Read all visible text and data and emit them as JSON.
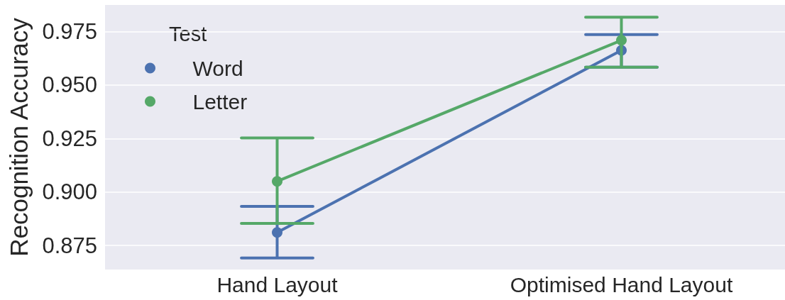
{
  "chart_data": {
    "type": "line",
    "categories": [
      "Hand Layout",
      "Optimised Hand Layout"
    ],
    "series": [
      {
        "name": "Word",
        "color": "#4c72b0",
        "values": [
          0.8811,
          0.9662
        ],
        "errors": [
          [
            0.8692,
            0.8933
          ],
          [
            0.9583,
            0.9736
          ]
        ]
      },
      {
        "name": "Letter",
        "color": "#55a868",
        "values": [
          0.905,
          0.9709
        ],
        "errors": [
          [
            0.8853,
            0.9253
          ],
          [
            0.9583,
            0.9817
          ]
        ]
      }
    ],
    "ylabel": "Recognition Accuracy",
    "legend_title": "Test",
    "legend": "top left",
    "ylim": [
      0.8638,
      0.9874
    ],
    "yticks": [
      0.875,
      {
        "value": 0.9,
        "label": "0.900"
      },
      0.925,
      {
        "value": 0.95,
        "label": "0.950"
      },
      0.975
    ],
    "grid": "y",
    "marker": "circle",
    "line_style": "solid"
  }
}
